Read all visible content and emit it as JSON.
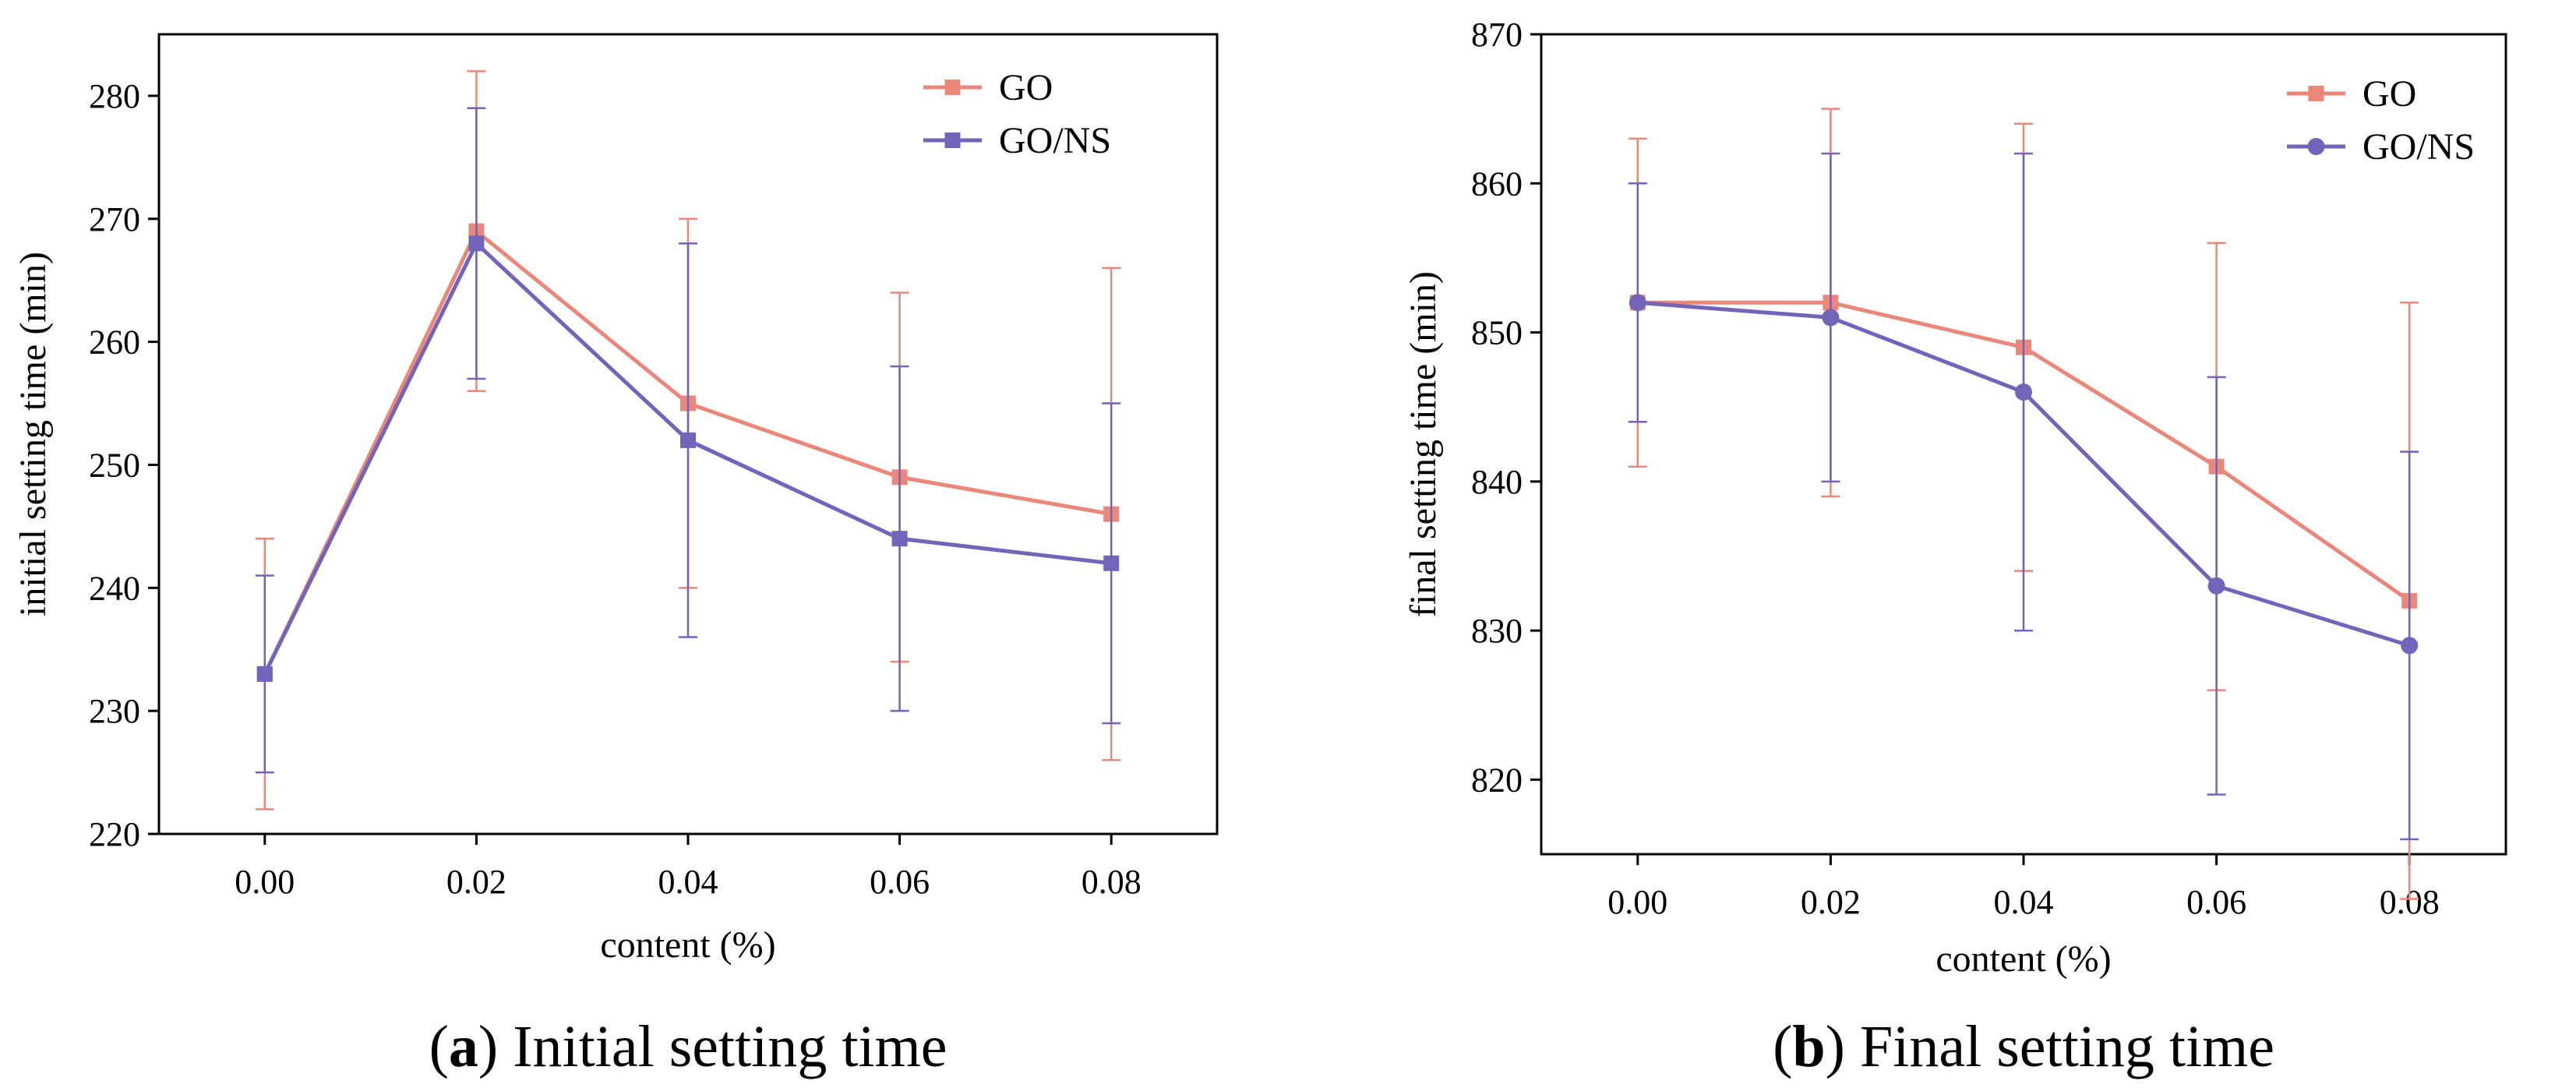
{
  "chart_data": [
    {
      "type": "line",
      "panel": "a",
      "caption_letter": "a",
      "caption_text": "Initial setting time",
      "caption_open": "(",
      "caption_close": ")",
      "xlabel": "content (%)",
      "ylabel": "initial setting time (min)",
      "x": [
        0.0,
        0.02,
        0.04,
        0.06,
        0.08
      ],
      "x_tick_labels": [
        "0.00",
        "0.02",
        "0.04",
        "0.06",
        "0.08"
      ],
      "xlim": [
        -0.01,
        0.09
      ],
      "ylim": [
        220,
        285
      ],
      "y_ticks": [
        220,
        230,
        240,
        250,
        260,
        270,
        280
      ],
      "legend_position": "top-right",
      "series": [
        {
          "name": "GO",
          "color": "#E8877A",
          "marker": "square",
          "values": [
            233,
            269,
            255,
            249,
            246
          ],
          "error_low": [
            222,
            256,
            240,
            234,
            226
          ],
          "error_high": [
            244,
            282,
            270,
            264,
            266
          ]
        },
        {
          "name": "GO/NS",
          "color": "#7264B8",
          "marker": "square",
          "values": [
            233,
            268,
            252,
            244,
            242
          ],
          "error_low": [
            225,
            257,
            236,
            230,
            229
          ],
          "error_high": [
            241,
            279,
            268,
            258,
            255
          ]
        }
      ]
    },
    {
      "type": "line",
      "panel": "b",
      "caption_letter": "b",
      "caption_text": "Final setting time",
      "caption_open": "(",
      "caption_close": ")",
      "xlabel": "content (%)",
      "ylabel": "final setting time (min)",
      "x": [
        0.0,
        0.02,
        0.04,
        0.06,
        0.08
      ],
      "x_tick_labels": [
        "0.00",
        "0.02",
        "0.04",
        "0.06",
        "0.08"
      ],
      "xlim": [
        -0.01,
        0.09
      ],
      "ylim": [
        815,
        870
      ],
      "y_ticks": [
        820,
        830,
        840,
        850,
        860,
        870
      ],
      "legend_position": "top-right",
      "series": [
        {
          "name": "GO",
          "color": "#E8877A",
          "marker": "square",
          "values": [
            852,
            852,
            849,
            841,
            832
          ],
          "error_low": [
            841,
            839,
            834,
            826,
            812
          ],
          "error_high": [
            863,
            865,
            864,
            856,
            852
          ]
        },
        {
          "name": "GO/NS",
          "color": "#7264B8",
          "marker": "circle",
          "values": [
            852,
            851,
            846,
            833,
            829
          ],
          "error_low": [
            844,
            840,
            830,
            819,
            816
          ],
          "error_high": [
            860,
            862,
            862,
            847,
            842
          ]
        }
      ]
    }
  ]
}
